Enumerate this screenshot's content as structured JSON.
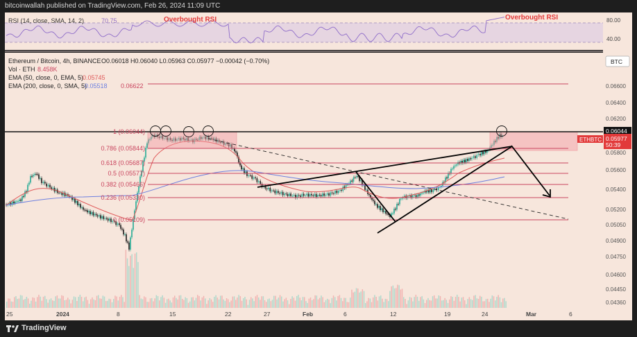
{
  "topbar": {
    "publish_text": "bitcoinwallah published on TradingView.com, Feb 26, 2024 11:09 UTC"
  },
  "rsi": {
    "legend_name": "RSI (14, close, SMA, 14, 2)",
    "legend_value": "70.75",
    "overbought_label_1": "Overbought RSI",
    "overbought_label_2": "Overbought RSI",
    "ticks": [
      "80.00",
      "40.00"
    ]
  },
  "legend": {
    "symbol": "Ethereum / Bitcoin, 4h, BINANCE",
    "ohlc": "O0.06018 H0.06040 L0.05963 C0.05977 −0.00042 (−0.70%)",
    "vol_name": "Vol · ETH",
    "vol_value": "8.458K",
    "ema50_name": "EMA (50, close, 0, EMA, 5)",
    "ema50_value": "0.05745",
    "ema200_name": "EMA (200, close, 0, SMA, 5)",
    "ema200_value_1": "0.05518",
    "ema200_value_2": "0.06622"
  },
  "price_axis": {
    "currency_button": "BTC",
    "ticks": [
      "0.06600",
      "0.06400",
      "0.06200",
      "0.05800",
      "0.05600",
      "0.05400",
      "0.05200",
      "0.05050",
      "0.04900",
      "0.04750",
      "0.04600",
      "0.04450",
      "0.04360"
    ],
    "last_price_box": "0.06044",
    "pair_label": "ETHBTC",
    "current_price": "0.05977",
    "countdown": "50:39"
  },
  "fib": {
    "levels": [
      {
        "label": "1 (0.06044)"
      },
      {
        "label": "0.786 (0.05844)"
      },
      {
        "label": "0.618 (0.05687)"
      },
      {
        "label": "0.5 (0.05577)"
      },
      {
        "label": "0.382 (0.05466)"
      },
      {
        "label": "0.236 (0.05330)"
      },
      {
        "label": "0 (0.05109)"
      }
    ]
  },
  "time_axis": {
    "ticks": [
      "25",
      "2024",
      "8",
      "15",
      "22",
      "27",
      "Feb",
      "6",
      "12",
      "19",
      "24",
      "Mar",
      "6"
    ]
  },
  "branding": {
    "logo_text": "TradingView"
  },
  "colors": {
    "chart_bg": "#f7e6dc",
    "candle_up": "#22ab94",
    "candle_down": "#1a1a1a",
    "ema50": "#e05b5b",
    "ema200": "#6c7fe0",
    "fib_line": "#c9445e",
    "rsi_line": "#8e6cc9",
    "annot_red": "#e23a3a"
  }
}
